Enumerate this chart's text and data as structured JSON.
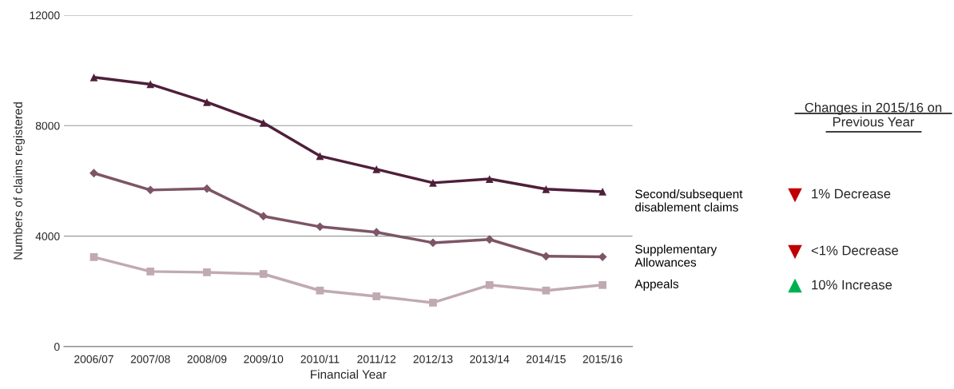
{
  "chart_data": {
    "type": "line",
    "xlabel": "Financial Year",
    "ylabel": "Numbers of claims registered",
    "categories": [
      "2006/07",
      "2007/08",
      "2008/09",
      "2009/10",
      "2010/11",
      "2011/12",
      "2012/13",
      "2013/14",
      "2014/15",
      "2015/16"
    ],
    "series": [
      {
        "name": "Second/subsequent\ndisablement claims",
        "color": "#4f1f3a",
        "marker": "triangle",
        "values": [
          9750,
          9500,
          8850,
          8100,
          6900,
          6420,
          5930,
          6070,
          5700,
          5610
        ]
      },
      {
        "name": "Supplementary\nAllowances",
        "color": "#7d5566",
        "marker": "diamond",
        "values": [
          6280,
          5670,
          5720,
          4720,
          4340,
          4140,
          3760,
          3880,
          3270,
          3250
        ]
      },
      {
        "name": "Appeals",
        "color": "#c0aab0",
        "marker": "square",
        "values": [
          3240,
          2720,
          2690,
          2630,
          2030,
          1820,
          1590,
          2230,
          2030,
          2230
        ]
      }
    ],
    "ylim": [
      0,
      12000
    ],
    "yticks": [
      0,
      4000,
      8000,
      12000
    ],
    "grid": "y",
    "legend": false,
    "annotations": [
      "Changes in 2015/16 on\nPrevious Year",
      "1% Decrease",
      "<1% Decrease",
      "10% Increase"
    ]
  }
}
